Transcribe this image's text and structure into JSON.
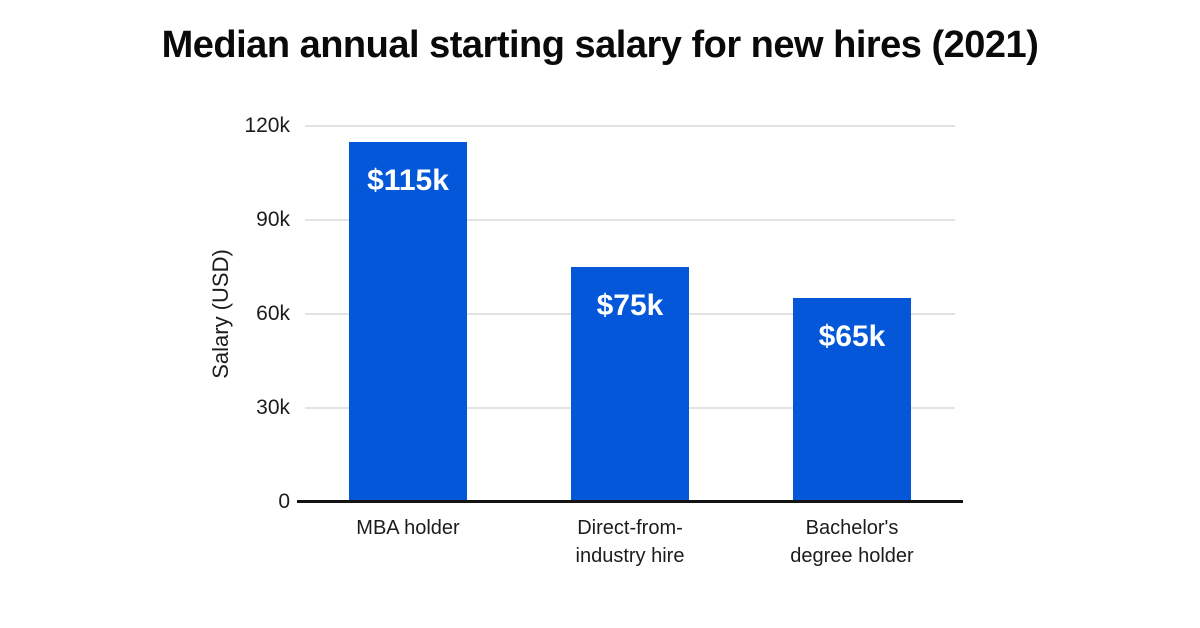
{
  "title": "Median annual starting salary for new hires (2021)",
  "chart_data": {
    "type": "bar",
    "title": "Median annual starting salary for new hires (2021)",
    "categories": [
      "MBA holder",
      "Direct-from-\nindustry hire",
      "Bachelor's\ndegree holder"
    ],
    "values": [
      115000,
      75000,
      65000
    ],
    "value_labels": [
      "$115k",
      "$75k",
      "$65k"
    ],
    "xlabel": "",
    "ylabel": "Salary (USD)",
    "ylim": [
      0,
      120000
    ],
    "yticks": [
      0,
      30000,
      60000,
      90000,
      120000
    ],
    "ytick_labels": [
      "0",
      "30k",
      "60k",
      "90k",
      "120k"
    ],
    "grid": true,
    "legend": "none",
    "colors": {
      "bar": "#0457d8",
      "bar_label_text": "#ffffff",
      "gridline": "#e3e3e3",
      "axis_line": "#141414",
      "background": "#ffffff",
      "text": "#1c1c1c"
    }
  }
}
